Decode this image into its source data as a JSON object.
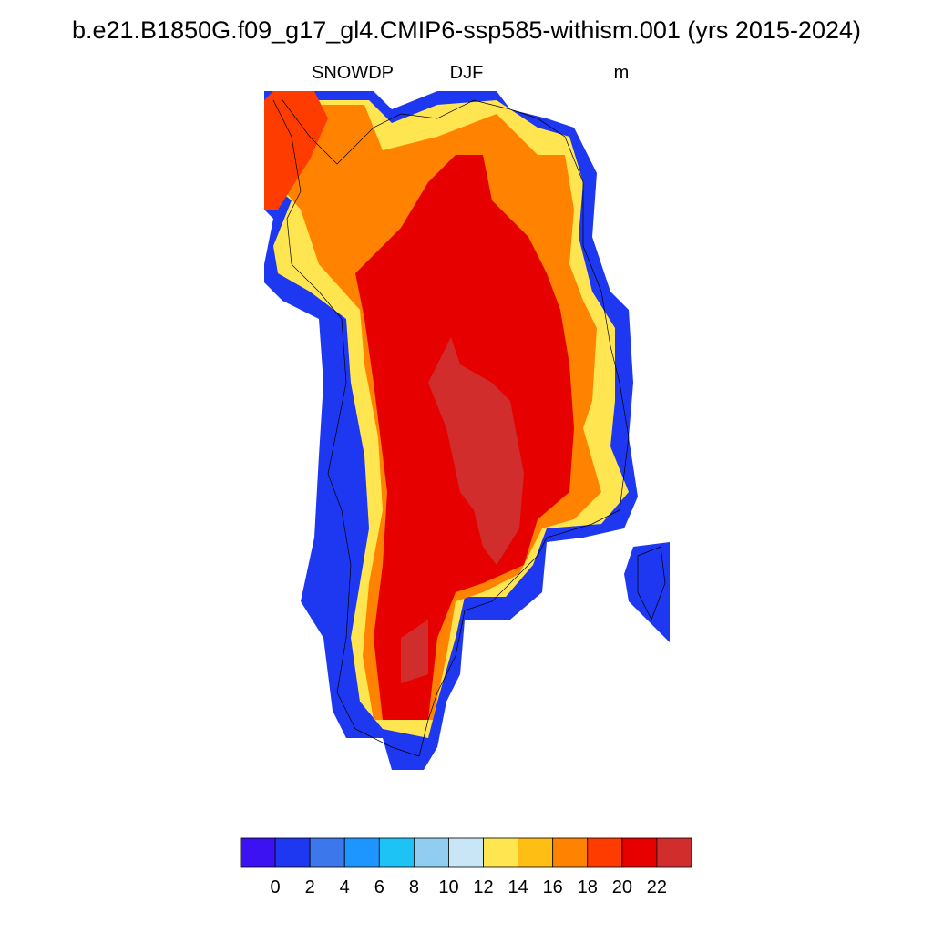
{
  "title": "b.e21.B1850G.f09_g17_gl4.CMIP6-ssp585-withism.001 (yrs 2015-2024)",
  "left_string": "SNOWDP",
  "center_string": "DJF",
  "right_string": "m",
  "colorbar": {
    "colors": [
      "#3c12f2",
      "#1e37f0",
      "#3c78ec",
      "#1e96ff",
      "#1ec3f5",
      "#91cdf0",
      "#c8e6f5",
      "#ffe650",
      "#ffbe14",
      "#ff8200",
      "#ff3c00",
      "#e60000",
      "#d22d2d"
    ],
    "levels": [
      0,
      2,
      4,
      6,
      8,
      10,
      12,
      14,
      16,
      18,
      20,
      22
    ]
  }
}
